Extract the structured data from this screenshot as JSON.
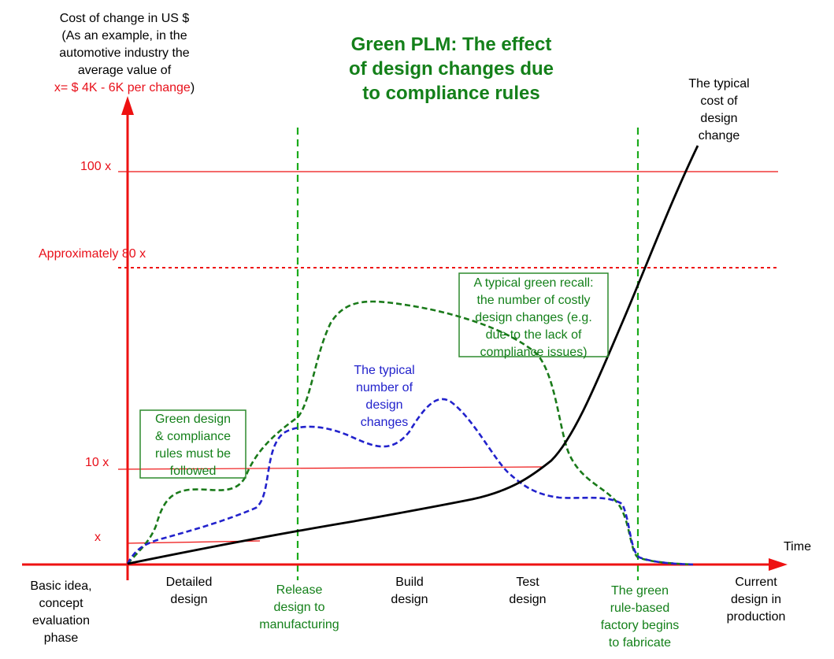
{
  "title": [
    "Green PLM: The effect",
    "of design changes due",
    "to compliance rules"
  ],
  "y_axis_caption": [
    "Cost of change in US $",
    "(As an example, in the",
    "automotive industry the",
    "average value of"
  ],
  "y_axis_caption_value": "x= $ 4K - 6K  per change",
  "y_axis_caption_close": ")",
  "y_levels": {
    "level_100": "100 x",
    "level_80": "Approximately 80 x",
    "level_10": "10 x",
    "level_1": "x"
  },
  "x_axis_label": "Time",
  "phases": {
    "basic_idea": [
      "Basic idea,",
      "concept",
      "evaluation",
      "phase"
    ],
    "detailed_design": [
      "Detailed",
      "design"
    ],
    "release_design": [
      "Release",
      "design to",
      "manufacturing"
    ],
    "build_design": [
      "Build",
      "design"
    ],
    "test_design": [
      "Test",
      "design"
    ],
    "green_factory": [
      "The green",
      "rule-based",
      "factory begins",
      "to fabricate"
    ],
    "current_design": [
      "Current",
      "design in",
      "production"
    ]
  },
  "annotations": {
    "typical_cost": [
      "The typical",
      "cost of",
      "design",
      "change"
    ],
    "typical_number": [
      "The typical",
      "number of",
      "design",
      "changes"
    ],
    "green_recall": [
      "A typical green recall:",
      "the number of costly",
      "design changes (e.g.",
      "due to the lack of",
      "compliance issues)"
    ],
    "green_rules": [
      "Green design",
      "& compliance",
      "rules  must be",
      "followed"
    ]
  },
  "colors": {
    "axis": "#ee1111",
    "green": "#14801a",
    "blue": "#2222cc",
    "black": "#000000"
  }
}
